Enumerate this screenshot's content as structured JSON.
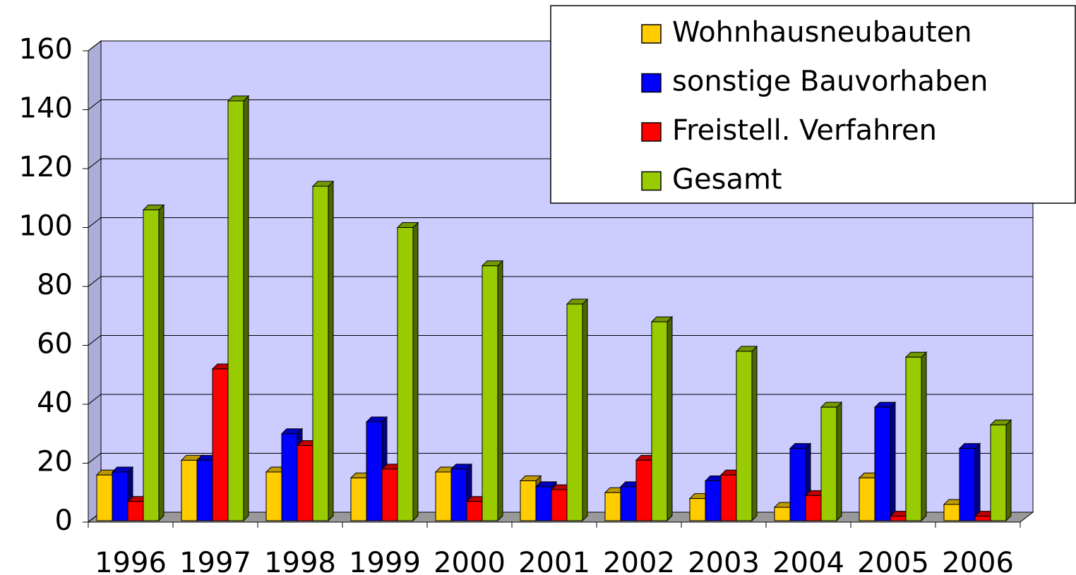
{
  "chart_data": {
    "type": "bar3d",
    "categories": [
      "1996",
      "1997",
      "1998",
      "1999",
      "2000",
      "2001",
      "2002",
      "2003",
      "2004",
      "2005",
      "2006"
    ],
    "series": [
      {
        "name": "Wohnhausneubauten",
        "color": "#ffcc00",
        "values": [
          16,
          21,
          17,
          15,
          17,
          14,
          10,
          8,
          5,
          15,
          6
        ]
      },
      {
        "name": "sonstige Bauvorhaben",
        "color": "#0000ff",
        "values": [
          17,
          21,
          30,
          34,
          18,
          12,
          12,
          14,
          25,
          39,
          25
        ]
      },
      {
        "name": "Freistell. Verfahren",
        "color": "#ff0000",
        "values": [
          7,
          52,
          26,
          18,
          7,
          11,
          21,
          16,
          9,
          2,
          2
        ]
      },
      {
        "name": "Gesamt",
        "color": "#99cc00",
        "values": [
          106,
          143,
          114,
          100,
          87,
          74,
          68,
          58,
          39,
          56,
          33
        ]
      }
    ],
    "ylim": [
      0,
      160
    ],
    "yticks": [
      0,
      20,
      40,
      60,
      80,
      100,
      120,
      140,
      160
    ],
    "grid": true,
    "legend": "top-right",
    "wall_color": "#ccccff",
    "floor_color": "#999999"
  }
}
